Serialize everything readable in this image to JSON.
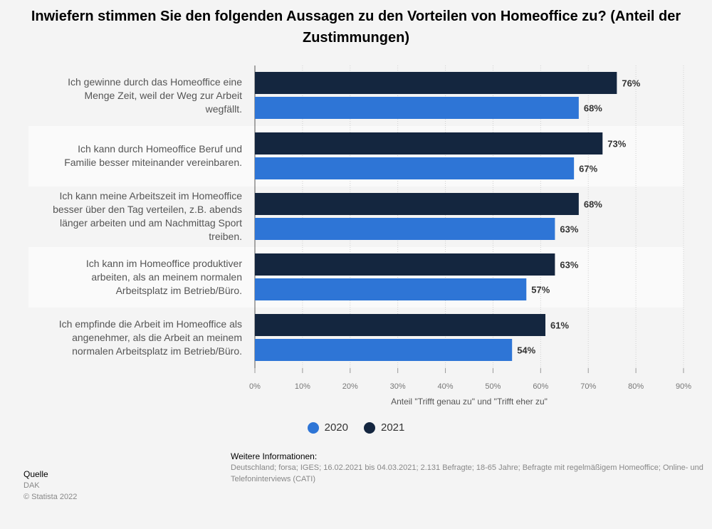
{
  "chart_data": {
    "type": "bar",
    "orientation": "horizontal",
    "title": "Inwiefern stimmen Sie den folgenden Aussagen zu den Vorteilen von Homeoffice zu? (Anteil der Zustimmungen)",
    "xlabel": "Anteil \"Trifft genau zu\" und \"Trifft eher zu\"",
    "ylabel": "",
    "xlim": [
      0,
      90
    ],
    "x_ticks": [
      "0%",
      "10%",
      "20%",
      "30%",
      "40%",
      "50%",
      "60%",
      "70%",
      "80%",
      "90%"
    ],
    "grid": true,
    "legend_position": "bottom-center",
    "categories": [
      [
        "Ich gewinne durch das Homeoffice eine",
        "Menge Zeit, weil der Weg zur Arbeit",
        "wegfällt."
      ],
      [
        "Ich kann durch Homeoffice Beruf und",
        "Familie besser miteinander vereinbaren."
      ],
      [
        "Ich kann meine Arbeitszeit im Homeoffice",
        "besser über den Tag verteilen, z.B. abends",
        "länger arbeiten und am Nachmittag Sport",
        "treiben."
      ],
      [
        "Ich kann im Homeoffice produktiver",
        "arbeiten, als an meinem normalen",
        "Arbeitsplatz im Betrieb/Büro."
      ],
      [
        "Ich empfinde die Arbeit im Homeoffice als",
        "angenehmer, als die Arbeit an meinem",
        "normalen Arbeitsplatz im Betrieb/Büro."
      ]
    ],
    "series": [
      {
        "name": "2021",
        "color": "#14263f",
        "values": [
          76,
          73,
          68,
          63,
          61
        ],
        "labels": [
          "76%",
          "73%",
          "68%",
          "63%",
          "61%"
        ]
      },
      {
        "name": "2020",
        "color": "#2e75d6",
        "values": [
          68,
          67,
          63,
          57,
          54
        ],
        "labels": [
          "68%",
          "67%",
          "63%",
          "57%",
          "54%"
        ]
      }
    ],
    "legend_order": [
      "2020",
      "2021"
    ]
  },
  "footer": {
    "info_heading": "Weitere Informationen:",
    "info_text": "Deutschland; forsa; IGES; 16.02.2021 bis 04.03.2021; 2.131 Befragte; 18-65 Jahre; Befragte mit regelmäßigem Homeoffice; Online- und\nTelefoninterviews (CATI)",
    "source_heading": "Quelle",
    "source_lines": [
      "DAK",
      "© Statista 2022"
    ]
  }
}
